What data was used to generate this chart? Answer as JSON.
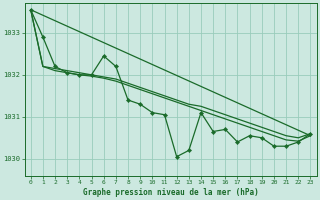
{
  "xlabel": "Graphe pression niveau de la mer (hPa)",
  "bg_color": "#cce8e0",
  "line_color": "#1a6b2a",
  "grid_color": "#99ccbb",
  "xlim": [
    -0.5,
    23.5
  ],
  "ylim": [
    1029.6,
    1033.7
  ],
  "yticks": [
    1030,
    1031,
    1032,
    1033
  ],
  "xticks": [
    0,
    1,
    2,
    3,
    4,
    5,
    6,
    7,
    8,
    9,
    10,
    11,
    12,
    13,
    14,
    15,
    16,
    17,
    18,
    19,
    20,
    21,
    22,
    23
  ],
  "series_jagged": [
    1033.55,
    1032.9,
    1032.2,
    1032.05,
    1032.0,
    1032.0,
    1032.45,
    1032.2,
    1031.4,
    1031.3,
    1031.1,
    1031.05,
    1030.05,
    1030.2,
    1031.1,
    1030.65,
    1030.7,
    1030.4,
    1030.55,
    1030.5,
    1030.3,
    1030.3,
    1030.4,
    1030.6
  ],
  "series_smooth1": [
    1033.55,
    1032.2,
    1032.15,
    1032.1,
    1032.05,
    1032.0,
    1031.95,
    1031.9,
    1031.8,
    1031.7,
    1031.6,
    1031.5,
    1031.4,
    1031.3,
    1031.25,
    1031.15,
    1031.05,
    1030.95,
    1030.85,
    1030.75,
    1030.65,
    1030.55,
    1030.5,
    1030.6
  ],
  "series_smooth2": [
    1033.55,
    1032.2,
    1032.1,
    1032.05,
    1032.0,
    1031.97,
    1031.92,
    1031.85,
    1031.75,
    1031.65,
    1031.55,
    1031.45,
    1031.35,
    1031.25,
    1031.15,
    1031.05,
    1030.95,
    1030.85,
    1030.75,
    1030.65,
    1030.55,
    1030.45,
    1030.42,
    1030.55
  ],
  "trend_x": [
    0,
    23
  ],
  "trend_y": [
    1033.55,
    1030.55
  ]
}
